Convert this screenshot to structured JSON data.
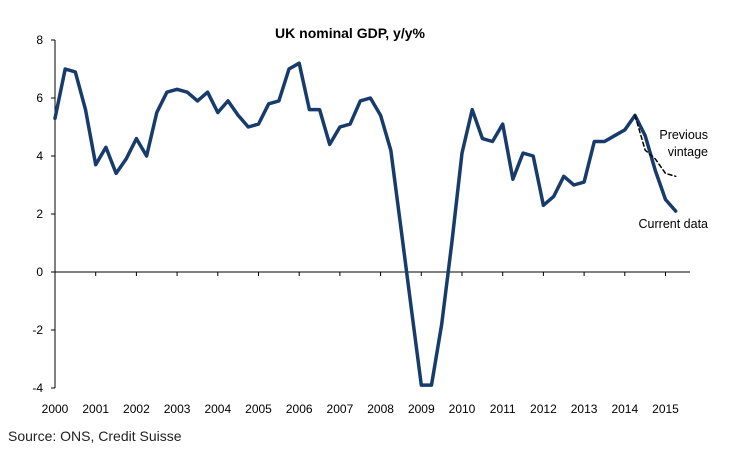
{
  "chart_data": {
    "type": "line",
    "title": "UK nominal GDP, y/y%",
    "xlabel": "",
    "ylabel": "",
    "x_tick_labels": [
      "2000",
      "2001",
      "2002",
      "2003",
      "2004",
      "2005",
      "2006",
      "2007",
      "2008",
      "2009",
      "2010",
      "2011",
      "2012",
      "2013",
      "2014",
      "2015"
    ],
    "y_ticks": [
      8,
      6,
      4,
      2,
      0,
      -2,
      -4
    ],
    "y_tick_labels": [
      "8",
      "6",
      "4",
      "2",
      "0",
      "-2",
      "-4"
    ],
    "ylim": [
      -4,
      8
    ],
    "grid": false,
    "series": [
      {
        "name": "Current data",
        "color": "#173c6b",
        "style": "solid",
        "x": [
          2000.0,
          2000.25,
          2000.5,
          2000.75,
          2001.0,
          2001.25,
          2001.5,
          2001.75,
          2002.0,
          2002.25,
          2002.5,
          2002.75,
          2003.0,
          2003.25,
          2003.5,
          2003.75,
          2004.0,
          2004.25,
          2004.5,
          2004.75,
          2005.0,
          2005.25,
          2005.5,
          2005.75,
          2006.0,
          2006.25,
          2006.5,
          2006.75,
          2007.0,
          2007.25,
          2007.5,
          2007.75,
          2008.0,
          2008.25,
          2008.5,
          2008.75,
          2009.0,
          2009.25,
          2009.5,
          2009.75,
          2010.0,
          2010.25,
          2010.5,
          2010.75,
          2011.0,
          2011.25,
          2011.5,
          2011.75,
          2012.0,
          2012.25,
          2012.5,
          2012.75,
          2013.0,
          2013.25,
          2013.5,
          2013.75,
          2014.0,
          2014.25,
          2014.5,
          2014.75,
          2015.0,
          2015.25
        ],
        "values": [
          5.3,
          7.0,
          6.9,
          5.6,
          3.7,
          4.3,
          3.4,
          3.9,
          4.6,
          4.0,
          5.5,
          6.2,
          6.3,
          6.2,
          5.9,
          6.2,
          5.5,
          5.9,
          5.4,
          5.0,
          5.1,
          5.8,
          5.9,
          7.0,
          7.2,
          5.6,
          5.6,
          4.4,
          5.0,
          5.1,
          5.9,
          6.0,
          5.4,
          4.2,
          1.5,
          -1.2,
          -3.9,
          -3.9,
          -1.8,
          1.0,
          4.1,
          5.6,
          4.6,
          4.5,
          5.1,
          3.2,
          4.1,
          4.0,
          2.3,
          2.6,
          3.3,
          3.0,
          3.1,
          4.5,
          4.5,
          4.7,
          4.9,
          5.4,
          4.7,
          3.5,
          2.5,
          2.1
        ]
      },
      {
        "name": "Previous vintage",
        "color": "#000000",
        "style": "dashed",
        "x": [
          2014.25,
          2014.5,
          2014.75,
          2015.0,
          2015.25
        ],
        "values": [
          5.4,
          4.2,
          3.9,
          3.4,
          3.3
        ]
      }
    ],
    "annotations": {
      "previous_line1": "Previous",
      "previous_line2": "vintage",
      "current": "Current data"
    }
  },
  "source": "Source: ONS, Credit Suisse"
}
